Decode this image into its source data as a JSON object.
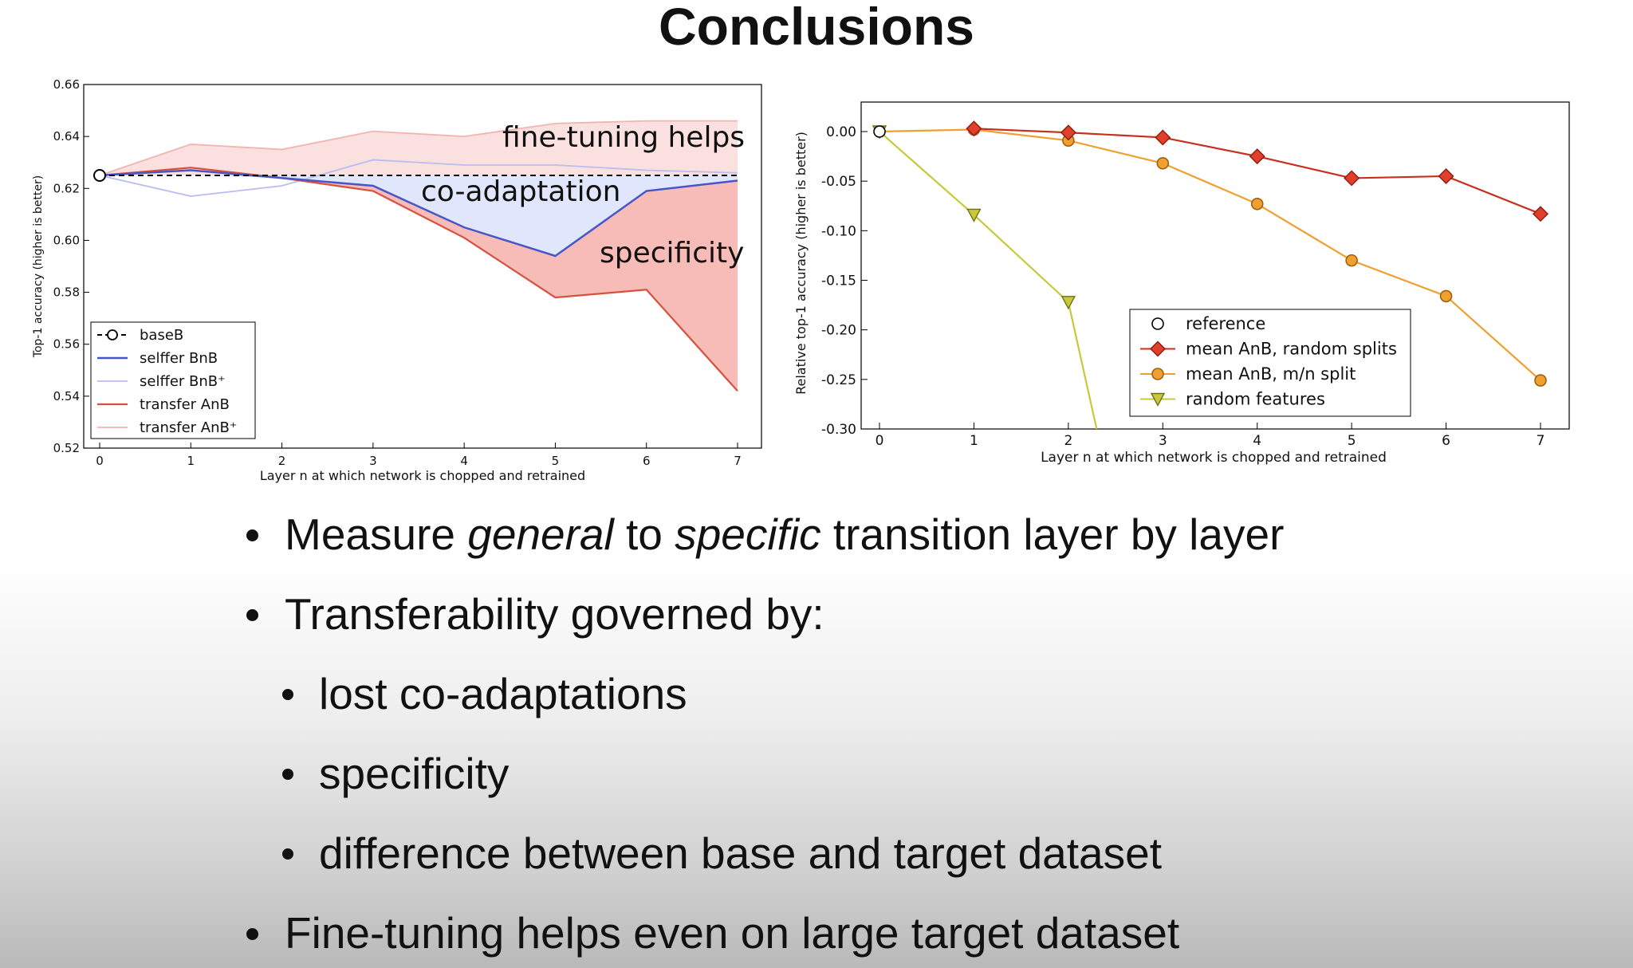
{
  "slide": {
    "title": "Conclusions",
    "bullets": {
      "b1": {
        "prefix": "Measure ",
        "em1": "general",
        "mid": " to ",
        "em2": "specific",
        "suffix": " transition layer by layer"
      },
      "b2": "Transferability governed by:",
      "b2_sub": [
        "lost co-adaptations",
        "specificity",
        "difference between base and target dataset"
      ],
      "b3": "Fine-tuning helps even on large target dataset"
    }
  },
  "chart_data": [
    {
      "type": "line",
      "ylabel": "Top-1 accuracy (higher is better)",
      "xlabel": "Layer n at which network is chopped and retrained",
      "xlim": [
        0,
        7
      ],
      "ylim": [
        0.52,
        0.66
      ],
      "x": [
        0,
        1,
        2,
        3,
        4,
        5,
        6,
        7
      ],
      "x_ticks": [
        "0",
        "1",
        "2",
        "3",
        "4",
        "5",
        "6",
        "7"
      ],
      "y_ticks": [
        "0.52",
        "0.54",
        "0.56",
        "0.58",
        "0.60",
        "0.62",
        "0.64",
        "0.66"
      ],
      "series": [
        {
          "name": "baseB",
          "values": [
            0.625,
            0.625,
            0.625,
            0.625,
            0.625,
            0.625,
            0.625,
            0.625
          ],
          "color": "#000000"
        },
        {
          "name": "selffer BnB",
          "values": [
            0.625,
            0.627,
            0.624,
            0.621,
            0.605,
            0.594,
            0.619,
            0.623
          ],
          "color": "#4656c8"
        },
        {
          "name": "selffer BnB⁺",
          "values": [
            0.625,
            0.617,
            0.621,
            0.631,
            0.629,
            0.629,
            0.627,
            0.626
          ],
          "color": "#b9bdf0"
        },
        {
          "name": "transfer AnB",
          "values": [
            0.625,
            0.628,
            0.624,
            0.619,
            0.601,
            0.578,
            0.581,
            0.542
          ],
          "color": "#d9503e"
        },
        {
          "name": "transfer AnB⁺",
          "values": [
            0.625,
            0.637,
            0.635,
            0.642,
            0.64,
            0.645,
            0.646,
            0.646
          ],
          "color": "#f2b4b0"
        }
      ],
      "annotations": [
        "fine-tuning helps",
        "co-adaptation",
        "specificity"
      ],
      "legend_position": "bottom-left",
      "grid": false
    },
    {
      "type": "line",
      "ylabel": "Relative top-1 accuracy (higher is better)",
      "xlabel": "Layer n at which network is chopped and retrained",
      "xlim": [
        0,
        7
      ],
      "ylim": [
        -0.3,
        0.0
      ],
      "x": [
        0,
        1,
        2,
        3,
        4,
        5,
        6,
        7
      ],
      "x_ticks": [
        "0",
        "1",
        "2",
        "3",
        "4",
        "5",
        "6",
        "7"
      ],
      "y_ticks": [
        "0.00",
        "-0.05",
        "-0.10",
        "-0.15",
        "-0.20",
        "-0.25",
        "-0.30"
      ],
      "series": [
        {
          "name": "reference",
          "x": [
            0
          ],
          "values": [
            0.0
          ],
          "color": "#ffffff"
        },
        {
          "name": "mean AnB, random splits",
          "x": [
            1,
            2,
            3,
            4,
            5,
            6,
            7
          ],
          "values": [
            0.003,
            -0.001,
            -0.006,
            -0.025,
            -0.047,
            -0.045,
            -0.083
          ],
          "color": "#e0402a"
        },
        {
          "name": "mean AnB, m/n split",
          "x": [
            0,
            1,
            2,
            3,
            4,
            5,
            6,
            7
          ],
          "values": [
            0.0,
            0.002,
            -0.009,
            -0.032,
            -0.073,
            -0.13,
            -0.166,
            -0.251
          ],
          "color": "#f0a030"
        },
        {
          "name": "random features",
          "x": [
            0,
            1,
            2,
            2.3
          ],
          "values": [
            0.0,
            -0.084,
            -0.172,
            -0.3
          ],
          "color": "#c8c83a"
        }
      ],
      "legend_position": "bottom-right",
      "grid": false
    }
  ]
}
